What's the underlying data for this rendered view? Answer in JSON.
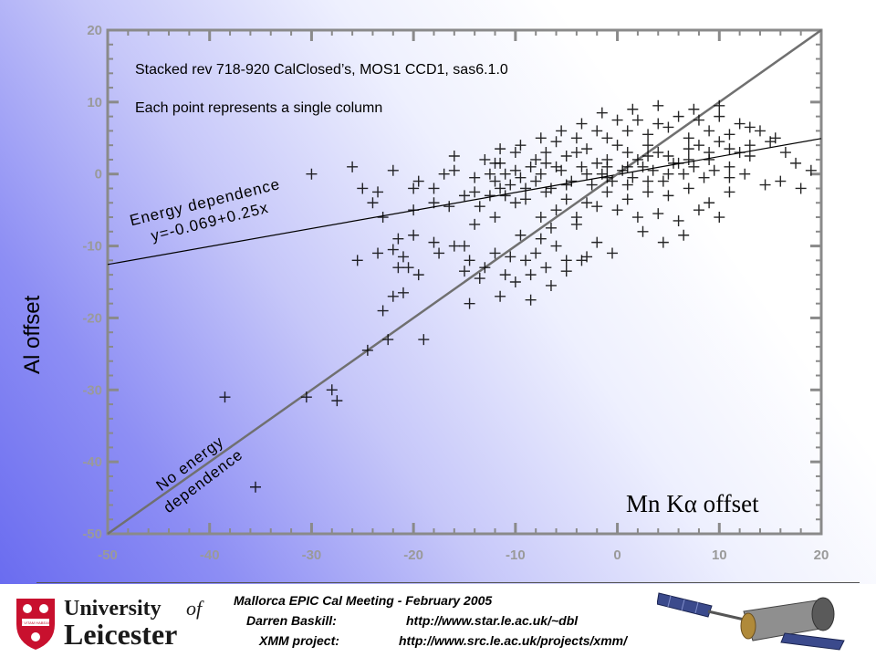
{
  "chart_data": {
    "type": "scatter",
    "title": "Stacked rev 718-920 CalClosed’s, MOS1 CCD1, sas6.1.0",
    "subtitle": "Each point represents a single column",
    "xlabel": "Mn Kα offset",
    "ylabel": "Al offset",
    "xlim": [
      -50,
      20
    ],
    "ylim": [
      -50,
      20
    ],
    "xticks": [
      "-50",
      "-40",
      "-30",
      "-20",
      "-10",
      "0",
      "10",
      "20"
    ],
    "yticks": [
      "20",
      "10",
      "0",
      "-10",
      "-20",
      "-30",
      "-40",
      "-50"
    ],
    "grid": false,
    "lines": [
      {
        "label_lines": [
          "Energy dependence",
          "y=-0.069+0.25x"
        ],
        "intercept": -0.069,
        "slope": 0.25,
        "x_range": [
          -50,
          20
        ],
        "color": "#000000"
      },
      {
        "label_lines": [
          "No energy",
          "dependence"
        ],
        "intercept": 0,
        "slope": 1,
        "x_range": [
          -50,
          20
        ],
        "color": "#707070"
      }
    ],
    "points": [
      [
        -38.5,
        -31
      ],
      [
        -35.5,
        -43.5
      ],
      [
        -30.5,
        -31
      ],
      [
        -28,
        -30
      ],
      [
        -27.5,
        -31.5
      ],
      [
        -24.5,
        -24.5
      ],
      [
        -22.5,
        -23
      ],
      [
        -23,
        -19
      ],
      [
        -22,
        -17
      ],
      [
        -21,
        -16.5
      ],
      [
        -21.5,
        -13
      ],
      [
        -20.5,
        -13
      ],
      [
        -21,
        -11.5
      ],
      [
        -19.5,
        -14
      ],
      [
        -22,
        -10.5
      ],
      [
        -25.5,
        -12
      ],
      [
        -23.5,
        -11
      ],
      [
        -21.5,
        -9
      ],
      [
        -20,
        -8.5
      ],
      [
        -18,
        -9.5
      ],
      [
        -17.5,
        -11
      ],
      [
        -16,
        -10
      ],
      [
        -15,
        -10
      ],
      [
        -14,
        -7
      ],
      [
        -16.5,
        -4.5
      ],
      [
        -15,
        -3
      ],
      [
        -14,
        -2.5
      ],
      [
        -12,
        -6
      ],
      [
        -10,
        -4
      ],
      [
        -13.5,
        -4.5
      ],
      [
        -12.5,
        -3
      ],
      [
        -11.5,
        -2
      ],
      [
        -15,
        -13.5
      ],
      [
        -14.5,
        -12
      ],
      [
        -13.5,
        -14.5
      ],
      [
        -13,
        -13
      ],
      [
        -12,
        -11
      ],
      [
        -10.5,
        -11.5
      ],
      [
        -9.5,
        -8.5
      ],
      [
        -7.5,
        -9
      ],
      [
        -8,
        -11
      ],
      [
        -6,
        -10
      ],
      [
        -4,
        -7
      ],
      [
        -2,
        -9.5
      ],
      [
        -3,
        -11.5
      ],
      [
        -11.5,
        -17
      ],
      [
        -8.5,
        -14
      ],
      [
        -7,
        -13
      ],
      [
        -5,
        -12
      ],
      [
        -6.5,
        -15.5
      ],
      [
        -19,
        -23
      ],
      [
        -10,
        -15
      ],
      [
        -9,
        -12
      ],
      [
        -7.5,
        -6
      ],
      [
        -6.5,
        -7.5
      ],
      [
        -30,
        0
      ],
      [
        -26,
        1
      ],
      [
        -25,
        -2
      ],
      [
        -23.5,
        -2.5
      ],
      [
        -22,
        0.5
      ],
      [
        -20,
        -2
      ],
      [
        -19.5,
        -1
      ],
      [
        -18,
        -2
      ],
      [
        -17,
        0
      ],
      [
        -16,
        0.5
      ],
      [
        -14,
        -0.5
      ],
      [
        -12.5,
        0
      ],
      [
        -11.5,
        1.5
      ],
      [
        -10.5,
        -1.5
      ],
      [
        -9.5,
        -0.5
      ],
      [
        -8.5,
        1
      ],
      [
        -7.5,
        0
      ],
      [
        -6.5,
        -2
      ],
      [
        -5.5,
        0.5
      ],
      [
        -4.5,
        -1
      ],
      [
        -3.5,
        1
      ],
      [
        -2.5,
        -1.5
      ],
      [
        -1.5,
        0
      ],
      [
        -0.5,
        -1
      ],
      [
        0.5,
        0.5
      ],
      [
        1.5,
        -0.5
      ],
      [
        2.5,
        1
      ],
      [
        3.5,
        0.5
      ],
      [
        4.5,
        -1
      ],
      [
        5.5,
        1.5
      ],
      [
        6.5,
        0
      ],
      [
        7.5,
        1
      ],
      [
        8.5,
        -0.5
      ],
      [
        9.5,
        0.5
      ],
      [
        11,
        1
      ],
      [
        12.5,
        0
      ],
      [
        14.5,
        -1.5
      ],
      [
        -7,
        3
      ],
      [
        -5,
        2.5
      ],
      [
        -3,
        3.5
      ],
      [
        -1,
        2
      ],
      [
        1,
        3
      ],
      [
        3,
        4
      ],
      [
        5,
        2.5
      ],
      [
        7,
        3.5
      ],
      [
        9,
        2
      ],
      [
        11,
        3.5
      ],
      [
        13,
        2.5
      ],
      [
        15,
        4.5
      ],
      [
        16.5,
        3
      ],
      [
        -1,
        5
      ],
      [
        1,
        6
      ],
      [
        3,
        5.5
      ],
      [
        5,
        6.5
      ],
      [
        7,
        5
      ],
      [
        9,
        6
      ],
      [
        11,
        5.5
      ],
      [
        13,
        6.5
      ],
      [
        2,
        7.5
      ],
      [
        4,
        7
      ],
      [
        6,
        8
      ],
      [
        8,
        7.5
      ],
      [
        10,
        8
      ],
      [
        0,
        7.5
      ],
      [
        -2,
        6
      ],
      [
        -4,
        5
      ],
      [
        -6,
        4.5
      ],
      [
        -8,
        2
      ],
      [
        -10,
        3
      ],
      [
        -12,
        1.5
      ],
      [
        -11,
        -3
      ],
      [
        -9,
        -3.5
      ],
      [
        -7,
        -2.5
      ],
      [
        -5,
        -3.5
      ],
      [
        -3,
        -4
      ],
      [
        -1,
        -2.5
      ],
      [
        1,
        -3.5
      ],
      [
        3,
        -2.5
      ],
      [
        5,
        -3
      ],
      [
        7,
        -2
      ],
      [
        9,
        -4
      ],
      [
        11,
        -2.5
      ],
      [
        -6,
        -5
      ],
      [
        -4,
        -6
      ],
      [
        -2,
        -4.5
      ],
      [
        0,
        -5
      ],
      [
        2,
        -6
      ],
      [
        4,
        -5.5
      ],
      [
        6,
        -6.5
      ],
      [
        8,
        -5
      ],
      [
        10,
        -6
      ],
      [
        2.5,
        -8
      ],
      [
        4.5,
        -9.5
      ],
      [
        6.5,
        -8.5
      ],
      [
        -0.5,
        -11
      ],
      [
        -5,
        -13.5
      ],
      [
        -3.5,
        -12
      ],
      [
        -8.5,
        -17.5
      ],
      [
        -14.5,
        -18
      ],
      [
        -11,
        -14
      ],
      [
        0,
        4
      ],
      [
        2,
        2
      ],
      [
        4,
        3
      ],
      [
        6,
        1.5
      ],
      [
        8,
        4
      ],
      [
        10,
        4.5
      ],
      [
        12,
        3
      ],
      [
        -2,
        1.5
      ],
      [
        -4,
        3
      ],
      [
        -6,
        1
      ],
      [
        -8,
        -1
      ],
      [
        -10,
        0.5
      ],
      [
        -12,
        -1
      ],
      [
        -13,
        2
      ],
      [
        -16,
        2.5
      ],
      [
        -18,
        -4
      ],
      [
        -20,
        -5
      ],
      [
        -24,
        -4
      ],
      [
        -23,
        -6
      ],
      [
        1,
        1
      ],
      [
        3,
        2.5
      ],
      [
        5,
        0
      ],
      [
        7,
        2
      ],
      [
        9,
        3
      ],
      [
        11,
        -0.5
      ],
      [
        13,
        4
      ],
      [
        -1,
        -0.5
      ],
      [
        -3,
        0
      ],
      [
        -5,
        -1.5
      ],
      [
        -7,
        1.5
      ],
      [
        -9,
        -2
      ],
      [
        -11,
        0
      ],
      [
        14,
        6
      ],
      [
        15.5,
        5
      ],
      [
        12,
        7
      ],
      [
        10,
        9.5
      ],
      [
        7.5,
        9
      ],
      [
        4,
        9.5
      ],
      [
        1.5,
        9
      ],
      [
        -1.5,
        8.5
      ],
      [
        -3.5,
        7
      ],
      [
        -5.5,
        6
      ],
      [
        -7.5,
        5
      ],
      [
        -9.5,
        4
      ],
      [
        -11.5,
        3.5
      ],
      [
        16,
        -1
      ],
      [
        17.5,
        1.5
      ],
      [
        18,
        -2
      ],
      [
        19,
        0.5
      ],
      [
        3,
        -1
      ],
      [
        1,
        -1.5
      ],
      [
        -1,
        1
      ]
    ]
  },
  "footer": {
    "line1": "Mallorca EPIC Cal Meeting - February 2005",
    "line2_name": "Darren Baskill:",
    "line2_url": "http://www.star.le.ac.uk/~dbl",
    "line3_name": "XMM project:",
    "line3_url": "http://www.src.le.ac.uk/projects/xmm/"
  },
  "logo": {
    "university": "University",
    "of": "of",
    "name": "Leicester",
    "crest_motto": "UT VITAM HABEANT"
  },
  "colors": {
    "background_gradient_start": "#6a6cf0",
    "axis_gray": "#8a8a8a",
    "marker": "#000000",
    "logo_red": "#c8102e"
  }
}
